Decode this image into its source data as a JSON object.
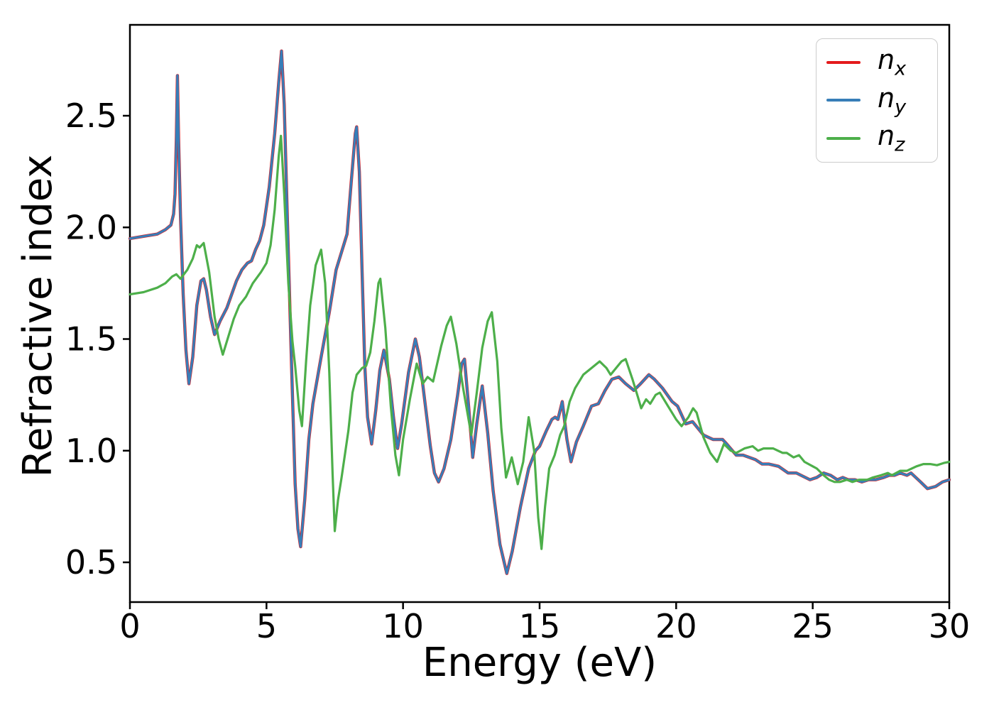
{
  "figure": {
    "background": "#ffffff",
    "spine_color": "#000000"
  },
  "axes": {
    "xlabel": "Energy (eV)",
    "ylabel": "Refractive index",
    "xticks": [
      0,
      5,
      10,
      15,
      20,
      25,
      30
    ],
    "xtick_labels": [
      "0",
      "5",
      "10",
      "15",
      "20",
      "25",
      "30"
    ],
    "yticks": [
      0.5,
      1.0,
      1.5,
      2.0,
      2.5
    ],
    "ytick_labels": [
      "0.5",
      "1.0",
      "1.5",
      "2.0",
      "2.5"
    ]
  },
  "legend": {
    "position": "upper right",
    "entries": [
      {
        "base": "n",
        "sub": "x",
        "color": "#e41a1c"
      },
      {
        "base": "n",
        "sub": "y",
        "color": "#377eb8"
      },
      {
        "base": "n",
        "sub": "z",
        "color": "#4daf4a"
      }
    ]
  },
  "chart_data": {
    "type": "line",
    "title": "",
    "xlabel": "Energy (eV)",
    "ylabel": "Refractive index",
    "xlim": [
      0,
      30
    ],
    "ylim": [
      0.32,
      2.91
    ],
    "grid": false,
    "note": "n_x coincides with n_y (red curve hidden beneath blue)",
    "series": [
      {
        "name": "n_x",
        "color": "#e41a1c",
        "same_as": "n_y"
      },
      {
        "name": "n_y",
        "color": "#377eb8",
        "points": [
          [
            0,
            1.95
          ],
          [
            0.5,
            1.96
          ],
          [
            1.0,
            1.97
          ],
          [
            1.3,
            1.99
          ],
          [
            1.5,
            2.01
          ],
          [
            1.6,
            2.06
          ],
          [
            1.65,
            2.15
          ],
          [
            1.7,
            2.4
          ],
          [
            1.74,
            2.68
          ],
          [
            1.78,
            2.4
          ],
          [
            1.85,
            2.05
          ],
          [
            1.95,
            1.7
          ],
          [
            2.05,
            1.45
          ],
          [
            2.16,
            1.3
          ],
          [
            2.3,
            1.42
          ],
          [
            2.45,
            1.65
          ],
          [
            2.6,
            1.76
          ],
          [
            2.7,
            1.77
          ],
          [
            2.8,
            1.72
          ],
          [
            2.95,
            1.6
          ],
          [
            3.1,
            1.52
          ],
          [
            3.3,
            1.58
          ],
          [
            3.55,
            1.64
          ],
          [
            3.9,
            1.76
          ],
          [
            4.1,
            1.81
          ],
          [
            4.3,
            1.84
          ],
          [
            4.45,
            1.85
          ],
          [
            4.6,
            1.9
          ],
          [
            4.75,
            1.94
          ],
          [
            4.9,
            2.01
          ],
          [
            5.1,
            2.18
          ],
          [
            5.3,
            2.42
          ],
          [
            5.45,
            2.65
          ],
          [
            5.55,
            2.79
          ],
          [
            5.65,
            2.55
          ],
          [
            5.75,
            2.1
          ],
          [
            5.9,
            1.45
          ],
          [
            6.05,
            0.85
          ],
          [
            6.15,
            0.65
          ],
          [
            6.25,
            0.57
          ],
          [
            6.4,
            0.78
          ],
          [
            6.55,
            1.05
          ],
          [
            6.7,
            1.21
          ],
          [
            7.0,
            1.42
          ],
          [
            7.3,
            1.62
          ],
          [
            7.55,
            1.81
          ],
          [
            7.75,
            1.89
          ],
          [
            7.95,
            1.97
          ],
          [
            8.1,
            2.2
          ],
          [
            8.25,
            2.42
          ],
          [
            8.3,
            2.45
          ],
          [
            8.4,
            2.25
          ],
          [
            8.5,
            1.8
          ],
          [
            8.6,
            1.38
          ],
          [
            8.7,
            1.15
          ],
          [
            8.85,
            1.03
          ],
          [
            9.0,
            1.18
          ],
          [
            9.15,
            1.36
          ],
          [
            9.3,
            1.45
          ],
          [
            9.5,
            1.32
          ],
          [
            9.65,
            1.15
          ],
          [
            9.8,
            1.01
          ],
          [
            9.95,
            1.12
          ],
          [
            10.2,
            1.35
          ],
          [
            10.45,
            1.5
          ],
          [
            10.6,
            1.42
          ],
          [
            10.8,
            1.22
          ],
          [
            11.0,
            1.02
          ],
          [
            11.15,
            0.9
          ],
          [
            11.3,
            0.86
          ],
          [
            11.5,
            0.92
          ],
          [
            11.75,
            1.05
          ],
          [
            12.0,
            1.25
          ],
          [
            12.15,
            1.39
          ],
          [
            12.25,
            1.41
          ],
          [
            12.4,
            1.2
          ],
          [
            12.55,
            0.97
          ],
          [
            12.7,
            1.12
          ],
          [
            12.9,
            1.29
          ],
          [
            13.1,
            1.08
          ],
          [
            13.3,
            0.82
          ],
          [
            13.55,
            0.58
          ],
          [
            13.8,
            0.45
          ],
          [
            14.0,
            0.55
          ],
          [
            14.3,
            0.75
          ],
          [
            14.6,
            0.92
          ],
          [
            14.85,
            1.0
          ],
          [
            15.0,
            1.02
          ],
          [
            15.25,
            1.09
          ],
          [
            15.45,
            1.14
          ],
          [
            15.57,
            1.15
          ],
          [
            15.67,
            1.14
          ],
          [
            15.83,
            1.22
          ],
          [
            16.0,
            1.05
          ],
          [
            16.15,
            0.95
          ],
          [
            16.35,
            1.04
          ],
          [
            16.6,
            1.11
          ],
          [
            16.9,
            1.2
          ],
          [
            17.15,
            1.21
          ],
          [
            17.4,
            1.27
          ],
          [
            17.65,
            1.32
          ],
          [
            17.9,
            1.33
          ],
          [
            18.15,
            1.3
          ],
          [
            18.45,
            1.27
          ],
          [
            18.7,
            1.3
          ],
          [
            19.0,
            1.34
          ],
          [
            19.2,
            1.32
          ],
          [
            19.5,
            1.28
          ],
          [
            19.85,
            1.22
          ],
          [
            20.05,
            1.2
          ],
          [
            20.35,
            1.12
          ],
          [
            20.6,
            1.13
          ],
          [
            21.0,
            1.07
          ],
          [
            21.35,
            1.05
          ],
          [
            21.7,
            1.05
          ],
          [
            21.85,
            1.03
          ],
          [
            22.2,
            0.98
          ],
          [
            22.45,
            0.98
          ],
          [
            22.9,
            0.96
          ],
          [
            23.15,
            0.94
          ],
          [
            23.4,
            0.94
          ],
          [
            23.75,
            0.93
          ],
          [
            24.1,
            0.9
          ],
          [
            24.4,
            0.9
          ],
          [
            24.9,
            0.87
          ],
          [
            25.15,
            0.88
          ],
          [
            25.4,
            0.9
          ],
          [
            25.65,
            0.89
          ],
          [
            25.9,
            0.87
          ],
          [
            26.1,
            0.88
          ],
          [
            26.3,
            0.87
          ],
          [
            26.55,
            0.87
          ],
          [
            26.8,
            0.86
          ],
          [
            27.05,
            0.87
          ],
          [
            27.3,
            0.87
          ],
          [
            27.6,
            0.88
          ],
          [
            27.8,
            0.89
          ],
          [
            28.0,
            0.89
          ],
          [
            28.2,
            0.9
          ],
          [
            28.45,
            0.89
          ],
          [
            28.6,
            0.9
          ],
          [
            28.95,
            0.86
          ],
          [
            29.2,
            0.83
          ],
          [
            29.5,
            0.84
          ],
          [
            29.75,
            0.86
          ],
          [
            30,
            0.87
          ]
        ]
      },
      {
        "name": "n_z",
        "color": "#4daf4a",
        "points": [
          [
            0,
            1.7
          ],
          [
            0.5,
            1.71
          ],
          [
            1.0,
            1.73
          ],
          [
            1.3,
            1.75
          ],
          [
            1.55,
            1.78
          ],
          [
            1.7,
            1.79
          ],
          [
            1.85,
            1.77
          ],
          [
            2.1,
            1.81
          ],
          [
            2.3,
            1.86
          ],
          [
            2.45,
            1.92
          ],
          [
            2.55,
            1.91
          ],
          [
            2.7,
            1.93
          ],
          [
            2.9,
            1.8
          ],
          [
            3.1,
            1.6
          ],
          [
            3.25,
            1.5
          ],
          [
            3.4,
            1.43
          ],
          [
            3.6,
            1.51
          ],
          [
            3.8,
            1.59
          ],
          [
            4.0,
            1.65
          ],
          [
            4.25,
            1.69
          ],
          [
            4.5,
            1.75
          ],
          [
            4.8,
            1.8
          ],
          [
            5.0,
            1.84
          ],
          [
            5.15,
            1.92
          ],
          [
            5.3,
            2.08
          ],
          [
            5.45,
            2.32
          ],
          [
            5.53,
            2.41
          ],
          [
            5.65,
            2.15
          ],
          [
            5.8,
            1.75
          ],
          [
            5.95,
            1.49
          ],
          [
            6.05,
            1.38
          ],
          [
            6.2,
            1.18
          ],
          [
            6.3,
            1.11
          ],
          [
            6.45,
            1.4
          ],
          [
            6.6,
            1.65
          ],
          [
            6.8,
            1.83
          ],
          [
            7.0,
            1.9
          ],
          [
            7.15,
            1.75
          ],
          [
            7.3,
            1.35
          ],
          [
            7.42,
            0.9
          ],
          [
            7.5,
            0.64
          ],
          [
            7.62,
            0.78
          ],
          [
            7.75,
            0.88
          ],
          [
            8.0,
            1.09
          ],
          [
            8.15,
            1.26
          ],
          [
            8.3,
            1.34
          ],
          [
            8.5,
            1.37
          ],
          [
            8.65,
            1.38
          ],
          [
            8.8,
            1.44
          ],
          [
            8.95,
            1.58
          ],
          [
            9.1,
            1.75
          ],
          [
            9.17,
            1.77
          ],
          [
            9.35,
            1.55
          ],
          [
            9.55,
            1.2
          ],
          [
            9.72,
            0.98
          ],
          [
            9.85,
            0.89
          ],
          [
            10.0,
            1.05
          ],
          [
            10.25,
            1.23
          ],
          [
            10.5,
            1.39
          ],
          [
            10.72,
            1.3
          ],
          [
            10.9,
            1.33
          ],
          [
            11.1,
            1.31
          ],
          [
            11.4,
            1.47
          ],
          [
            11.6,
            1.56
          ],
          [
            11.75,
            1.6
          ],
          [
            11.95,
            1.48
          ],
          [
            12.2,
            1.28
          ],
          [
            12.5,
            1.07
          ],
          [
            12.7,
            1.26
          ],
          [
            12.9,
            1.46
          ],
          [
            13.1,
            1.58
          ],
          [
            13.25,
            1.62
          ],
          [
            13.45,
            1.4
          ],
          [
            13.6,
            1.1
          ],
          [
            13.77,
            0.88
          ],
          [
            13.98,
            0.97
          ],
          [
            14.2,
            0.85
          ],
          [
            14.4,
            0.95
          ],
          [
            14.6,
            1.15
          ],
          [
            14.8,
            1.0
          ],
          [
            14.95,
            0.7
          ],
          [
            15.07,
            0.56
          ],
          [
            15.2,
            0.75
          ],
          [
            15.35,
            0.92
          ],
          [
            15.55,
            0.98
          ],
          [
            15.75,
            1.07
          ],
          [
            15.9,
            1.11
          ],
          [
            16.1,
            1.22
          ],
          [
            16.3,
            1.28
          ],
          [
            16.6,
            1.34
          ],
          [
            16.9,
            1.37
          ],
          [
            17.2,
            1.4
          ],
          [
            17.45,
            1.37
          ],
          [
            17.6,
            1.34
          ],
          [
            17.8,
            1.37
          ],
          [
            18.0,
            1.4
          ],
          [
            18.15,
            1.41
          ],
          [
            18.4,
            1.32
          ],
          [
            18.6,
            1.24
          ],
          [
            18.72,
            1.19
          ],
          [
            18.9,
            1.23
          ],
          [
            19.05,
            1.21
          ],
          [
            19.25,
            1.25
          ],
          [
            19.4,
            1.26
          ],
          [
            19.7,
            1.2
          ],
          [
            20.0,
            1.14
          ],
          [
            20.2,
            1.11
          ],
          [
            20.45,
            1.15
          ],
          [
            20.62,
            1.19
          ],
          [
            20.75,
            1.17
          ],
          [
            21.0,
            1.06
          ],
          [
            21.25,
            0.99
          ],
          [
            21.5,
            0.95
          ],
          [
            21.75,
            1.03
          ],
          [
            22.0,
            1.0
          ],
          [
            22.2,
            0.99
          ],
          [
            22.5,
            1.01
          ],
          [
            22.8,
            1.02
          ],
          [
            23.0,
            1.0
          ],
          [
            23.2,
            1.01
          ],
          [
            23.55,
            1.01
          ],
          [
            23.9,
            0.99
          ],
          [
            24.05,
            0.99
          ],
          [
            24.3,
            0.97
          ],
          [
            24.5,
            0.98
          ],
          [
            24.7,
            0.95
          ],
          [
            25.15,
            0.92
          ],
          [
            25.4,
            0.89
          ],
          [
            25.6,
            0.87
          ],
          [
            25.8,
            0.86
          ],
          [
            26.0,
            0.86
          ],
          [
            26.25,
            0.87
          ],
          [
            26.45,
            0.86
          ],
          [
            26.7,
            0.87
          ],
          [
            27.0,
            0.87
          ],
          [
            27.2,
            0.88
          ],
          [
            27.5,
            0.89
          ],
          [
            27.75,
            0.9
          ],
          [
            27.9,
            0.89
          ],
          [
            28.2,
            0.91
          ],
          [
            28.45,
            0.91
          ],
          [
            28.8,
            0.93
          ],
          [
            29.05,
            0.94
          ],
          [
            29.3,
            0.94
          ],
          [
            29.55,
            0.935
          ],
          [
            29.8,
            0.945
          ],
          [
            30,
            0.95
          ]
        ]
      }
    ]
  }
}
